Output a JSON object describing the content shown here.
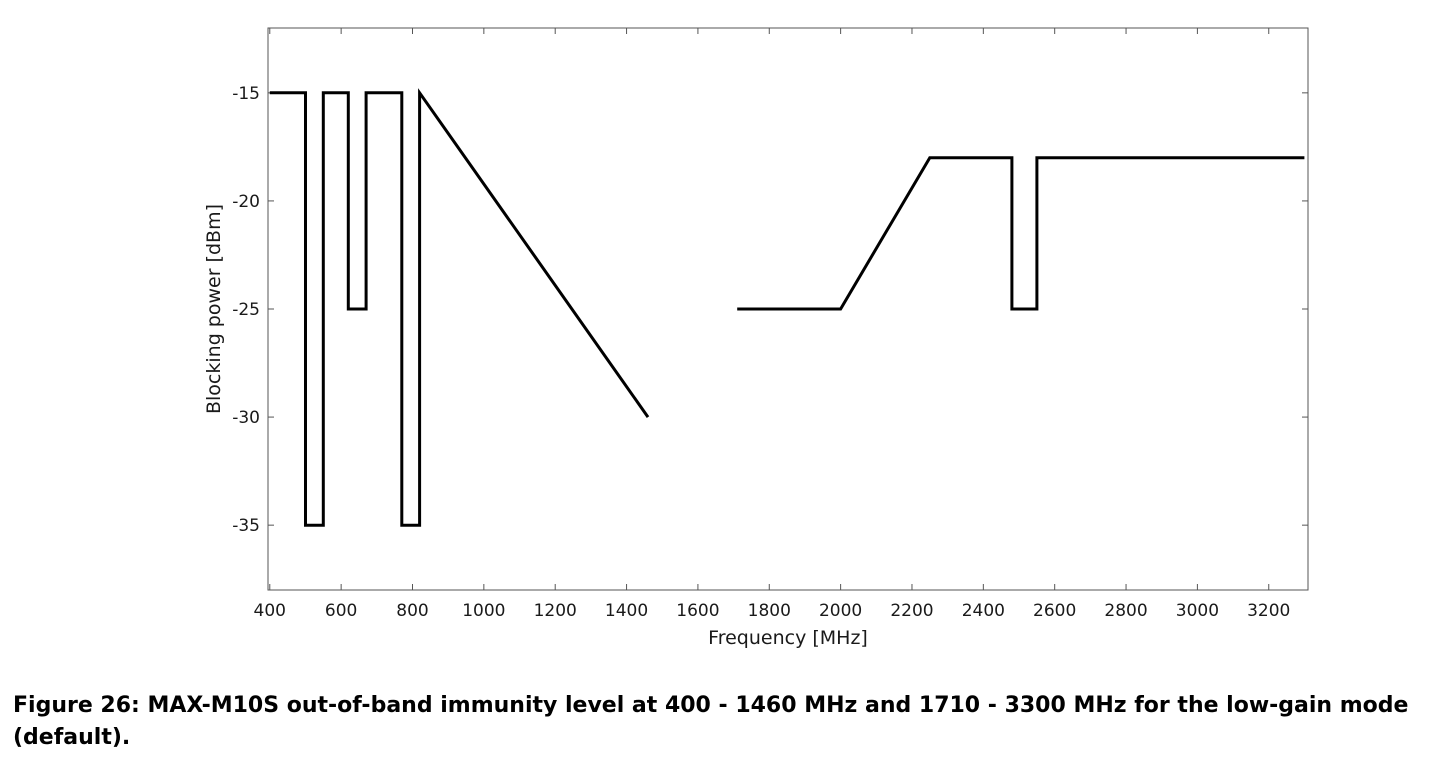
{
  "chart_data": {
    "type": "line",
    "title": "",
    "xlabel": "Frequency [MHz]",
    "ylabel": "Blocking power [dBm]",
    "xlim": [
      395,
      3310
    ],
    "ylim": [
      -38,
      -12
    ],
    "xticks": [
      400,
      600,
      800,
      1000,
      1200,
      1400,
      1600,
      1800,
      2000,
      2200,
      2400,
      2600,
      2800,
      3000,
      3200
    ],
    "yticks": [
      -15,
      -20,
      -25,
      -30,
      -35
    ],
    "grid": false,
    "series": [
      {
        "name": "",
        "color": "#000000",
        "points": [
          [
            400,
            -15
          ],
          [
            500,
            -15
          ],
          [
            500,
            -35
          ],
          [
            550,
            -35
          ],
          [
            550,
            -15
          ],
          [
            620,
            -15
          ],
          [
            620,
            -25
          ],
          [
            670,
            -25
          ],
          [
            670,
            -15
          ],
          [
            770,
            -15
          ],
          [
            770,
            -35
          ],
          [
            820,
            -35
          ],
          [
            820,
            -15
          ],
          [
            1460,
            -30
          ]
        ]
      },
      {
        "name": "",
        "color": "#000000",
        "points": [
          [
            1710,
            -25
          ],
          [
            2000,
            -25
          ],
          [
            2250,
            -18
          ],
          [
            2480,
            -18
          ],
          [
            2480,
            -25
          ],
          [
            2550,
            -25
          ],
          [
            2550,
            -18
          ],
          [
            3300,
            -18
          ]
        ]
      }
    ]
  },
  "caption": "Figure 26: MAX-M10S out-of-band immunity level at 400 - 1460 MHz and 1710 - 3300 MHz for the low-gain mode (default)."
}
